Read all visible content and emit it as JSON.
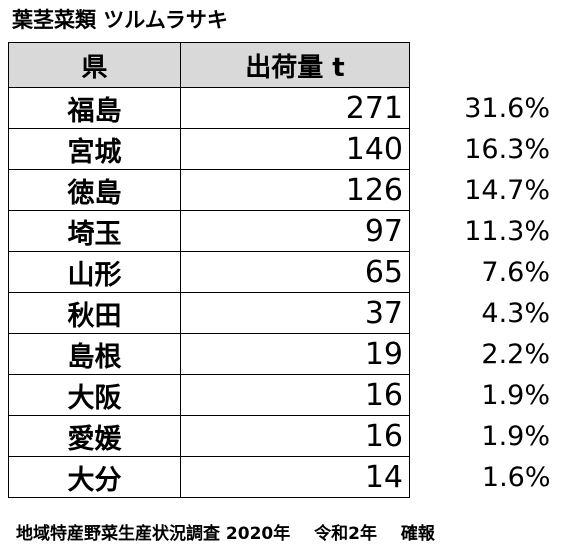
{
  "title": "葉茎菜類 ツルムラサキ",
  "table": {
    "headers": {
      "pref": "県",
      "amount": "出荷量 t"
    },
    "rows": [
      {
        "pref": "福島",
        "amount": "271",
        "pct": "31.6%"
      },
      {
        "pref": "宮城",
        "amount": "140",
        "pct": "16.3%"
      },
      {
        "pref": "徳島",
        "amount": "126",
        "pct": "14.7%"
      },
      {
        "pref": "埼玉",
        "amount": "97",
        "pct": "11.3%"
      },
      {
        "pref": "山形",
        "amount": "65",
        "pct": "7.6%"
      },
      {
        "pref": "秋田",
        "amount": "37",
        "pct": "4.3%"
      },
      {
        "pref": "島根",
        "amount": "19",
        "pct": "2.2%"
      },
      {
        "pref": "大阪",
        "amount": "16",
        "pct": "1.9%"
      },
      {
        "pref": "愛媛",
        "amount": "16",
        "pct": "1.9%"
      },
      {
        "pref": "大分",
        "amount": "14",
        "pct": "1.6%"
      }
    ]
  },
  "footer": {
    "source": "地域特産野菜生産状況調査 2020年",
    "era": "令和2年",
    "status": "確報"
  }
}
